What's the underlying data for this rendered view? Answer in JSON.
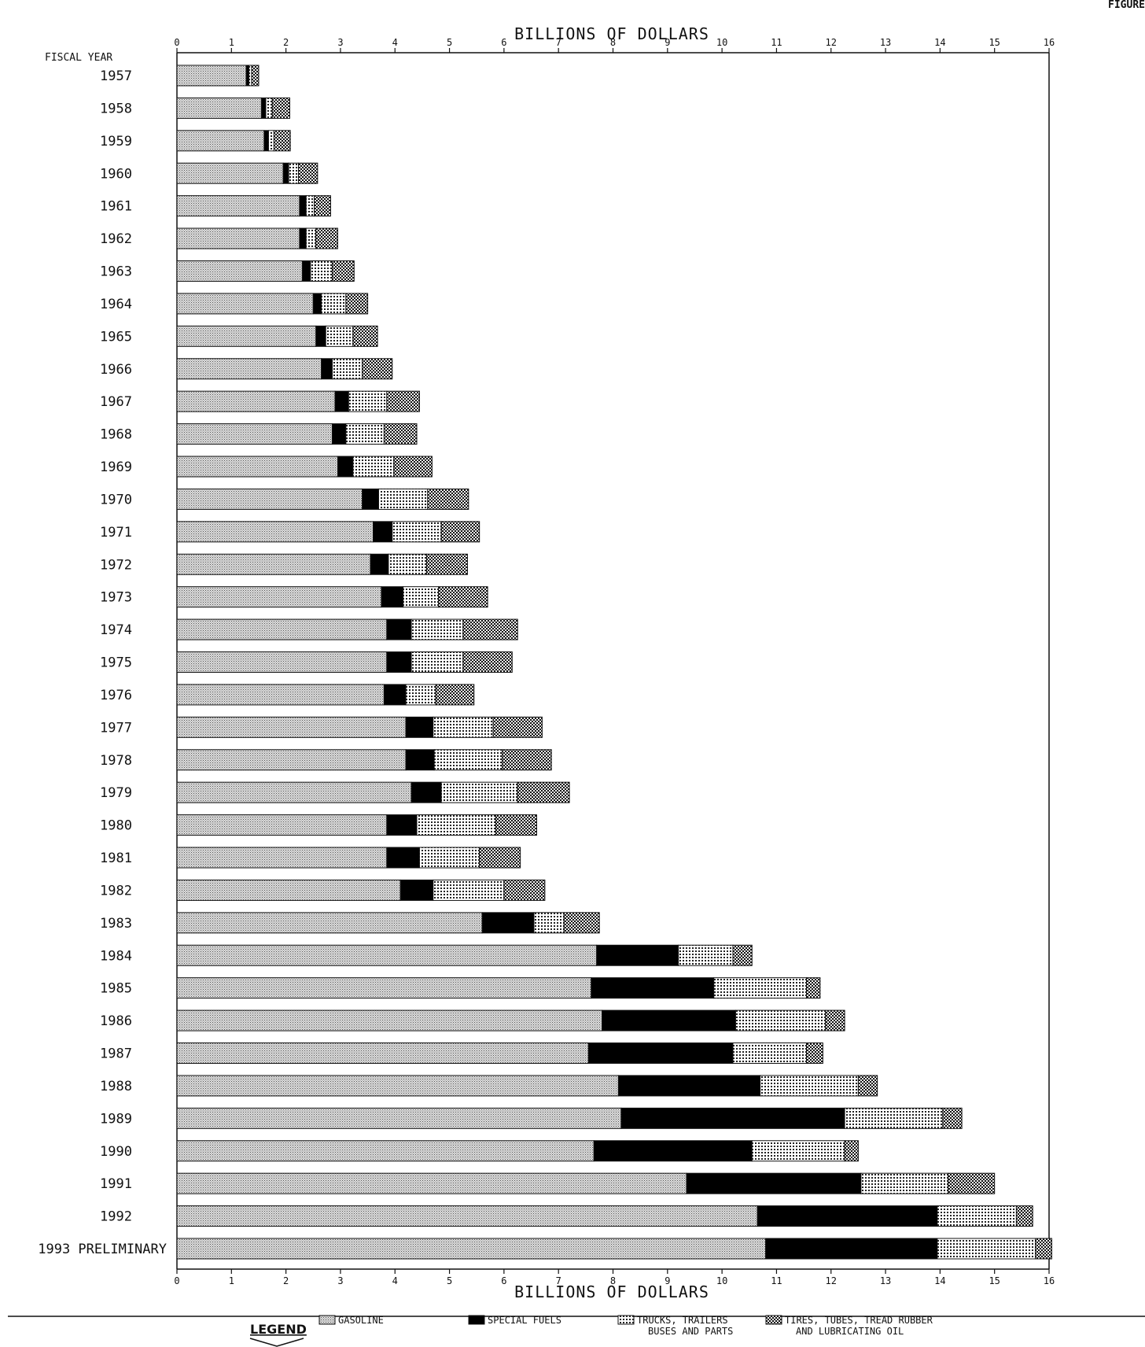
{
  "corner_label": "FIGURE",
  "chart_data": {
    "type": "bar",
    "orientation": "horizontal",
    "stacked": true,
    "category_axis_label": "FISCAL YEAR",
    "xlabel_top": "BILLIONS OF DOLLARS",
    "xlabel_bottom": "BILLIONS OF DOLLARS",
    "xlim": [
      0,
      16
    ],
    "x_ticks": [
      "0",
      "1",
      "2",
      "3",
      "4",
      "5",
      "6",
      "7",
      "8",
      "9",
      "10",
      "11",
      "12",
      "13",
      "14",
      "15",
      "16"
    ],
    "grid": false,
    "legend_title": "LEGEND",
    "categories": [
      "1957",
      "1958",
      "1959",
      "1960",
      "1961",
      "1962",
      "1963",
      "1964",
      "1965",
      "1966",
      "1967",
      "1968",
      "1969",
      "1970",
      "1971",
      "1972",
      "1973",
      "1974",
      "1975",
      "1976",
      "1977",
      "1978",
      "1979",
      "1980",
      "1981",
      "1982",
      "1983",
      "1984",
      "1985",
      "1986",
      "1987",
      "1988",
      "1989",
      "1990",
      "1991",
      "1992",
      "1993 PRELIMINARY"
    ],
    "series": [
      {
        "name": "GASOLINE",
        "pattern": "fine-dots",
        "color": "#bdbdbd",
        "values": [
          1.27,
          1.55,
          1.6,
          1.95,
          2.25,
          2.25,
          2.3,
          2.5,
          2.55,
          2.65,
          2.9,
          2.85,
          2.95,
          3.4,
          3.6,
          3.55,
          3.75,
          3.85,
          3.85,
          3.8,
          4.2,
          4.2,
          4.3,
          3.85,
          3.85,
          4.1,
          5.6,
          7.7,
          7.6,
          7.8,
          7.55,
          8.1,
          8.15,
          7.65,
          9.35,
          10.65,
          10.8
        ]
      },
      {
        "name": "SPECIAL FUELS",
        "pattern": "solid-black",
        "color": "#000000",
        "values": [
          0.05,
          0.08,
          0.08,
          0.1,
          0.12,
          0.12,
          0.15,
          0.15,
          0.18,
          0.2,
          0.25,
          0.25,
          0.28,
          0.3,
          0.35,
          0.33,
          0.4,
          0.45,
          0.45,
          0.4,
          0.5,
          0.52,
          0.55,
          0.55,
          0.6,
          0.6,
          0.95,
          1.5,
          2.25,
          2.45,
          2.65,
          2.6,
          4.1,
          2.9,
          3.2,
          3.3,
          3.15
        ]
      },
      {
        "name": "TRUCKS, TRAILERS BUSES AND PARTS",
        "pattern": "white-grid",
        "color": "#ffffff",
        "values": [
          0.05,
          0.12,
          0.1,
          0.18,
          0.15,
          0.18,
          0.4,
          0.45,
          0.5,
          0.55,
          0.7,
          0.7,
          0.75,
          0.9,
          0.9,
          0.7,
          0.65,
          0.95,
          0.95,
          0.55,
          1.1,
          1.25,
          1.4,
          1.45,
          1.1,
          1.3,
          0.55,
          1.0,
          1.7,
          1.65,
          1.35,
          1.8,
          1.8,
          1.7,
          1.6,
          1.45,
          1.8
        ]
      },
      {
        "name": "TIRES, TUBES, TREAD RUBBER AND LUBRICATING OIL",
        "pattern": "dark-checker",
        "color": "#555555",
        "values": [
          0.13,
          0.32,
          0.3,
          0.35,
          0.3,
          0.4,
          0.4,
          0.4,
          0.45,
          0.55,
          0.6,
          0.6,
          0.7,
          0.75,
          0.7,
          0.75,
          0.9,
          1.0,
          0.9,
          0.7,
          0.9,
          0.9,
          0.95,
          0.75,
          0.75,
          0.75,
          0.65,
          0.35,
          0.25,
          0.35,
          0.3,
          0.35,
          0.35,
          0.25,
          0.85,
          0.3,
          0.3
        ]
      }
    ]
  }
}
